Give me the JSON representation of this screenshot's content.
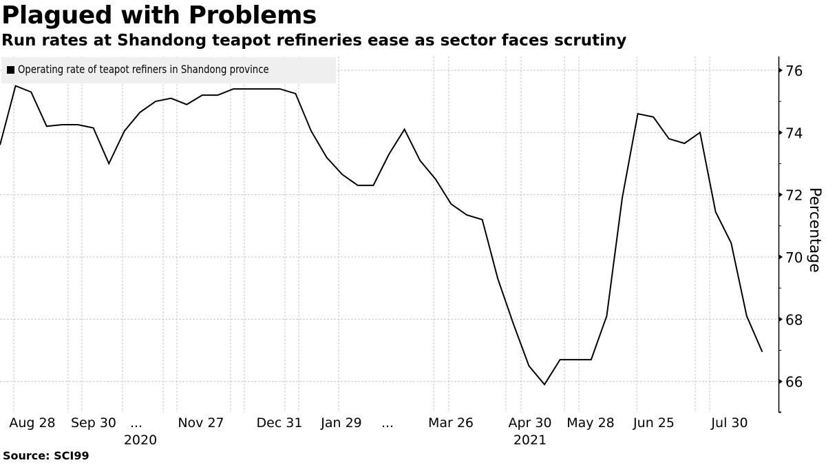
{
  "header": {
    "title": "Plagued with Problems",
    "subtitle": "Run rates at Shandong teapot refineries ease as sector faces scrutiny"
  },
  "footer": {
    "source": "Source: SCI99"
  },
  "chart_data": {
    "type": "line",
    "title": "Plagued with Problems",
    "subtitle": "Run rates at Shandong teapot refineries ease as sector faces scrutiny",
    "xlabel": "",
    "ylabel": "Percentage",
    "ylim": [
      65,
      76.5
    ],
    "yticks": [
      66,
      68,
      70,
      72,
      74,
      76
    ],
    "grid": true,
    "legend_position": "top-left",
    "x_tick_labels": [
      {
        "label": "Aug 28",
        "index": 1,
        "year": ""
      },
      {
        "label": "Sep 30",
        "index": 5,
        "year": ""
      },
      {
        "label": "...",
        "index": 8.8,
        "year": "2020"
      },
      {
        "label": "Nov 27",
        "index": 13,
        "year": ""
      },
      {
        "label": "Dec 31",
        "index": 18,
        "year": ""
      },
      {
        "label": "Jan 29",
        "index": 22,
        "year": ""
      },
      {
        "label": "...",
        "index": 25,
        "year": ""
      },
      {
        "label": "Mar 26",
        "index": 29,
        "year": ""
      },
      {
        "label": "Apr 30",
        "index": 34,
        "year": "2021"
      },
      {
        "label": "May 28",
        "index": 38,
        "year": ""
      },
      {
        "label": "Jun 25",
        "index": 42,
        "year": ""
      },
      {
        "label": "Jul 30",
        "index": 47,
        "year": ""
      }
    ],
    "series": [
      {
        "name": "Operating rate of teapot refiners in Shandong province",
        "color": "#000000",
        "values": [
          73.6,
          75.5,
          75.3,
          74.2,
          74.25,
          74.25,
          74.15,
          73.0,
          74.05,
          74.65,
          75.0,
          75.1,
          74.9,
          75.2,
          75.2,
          75.4,
          75.4,
          75.4,
          75.4,
          75.25,
          74.05,
          73.2,
          72.65,
          72.3,
          72.3,
          73.3,
          74.1,
          73.1,
          72.5,
          71.7,
          71.35,
          71.2,
          69.3,
          67.85,
          66.5,
          65.9,
          66.7,
          66.7,
          66.7,
          68.1,
          71.9,
          74.6,
          74.5,
          73.8,
          73.65,
          74.0,
          71.45,
          70.45,
          68.1,
          66.95
        ]
      }
    ]
  }
}
